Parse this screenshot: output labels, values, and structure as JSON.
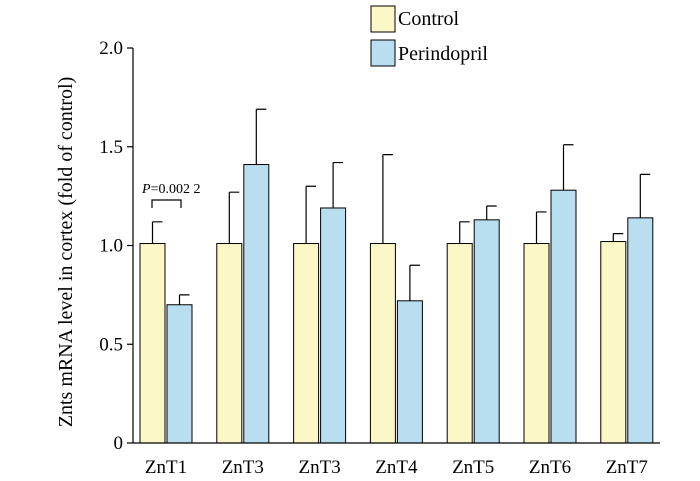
{
  "chart_data": {
    "type": "bar",
    "ylabel": "Znts mRNA level in cortex (fold of control)",
    "xlabel": "",
    "ylim": [
      0,
      2.0
    ],
    "yticks": [
      "0",
      "0.5",
      "1.0",
      "1.5",
      "2.0"
    ],
    "ytick_values": [
      0,
      0.5,
      1.0,
      1.5,
      2.0
    ],
    "categories": [
      "ZnT1",
      "ZnT3",
      "ZnT3",
      "ZnT4",
      "ZnT5",
      "ZnT6",
      "ZnT7"
    ],
    "series": [
      {
        "name": "Control",
        "color": "#fbf7c6",
        "values": [
          1.01,
          1.01,
          1.01,
          1.01,
          1.01,
          1.01,
          1.02
        ],
        "errors": [
          0.11,
          0.26,
          0.29,
          0.45,
          0.11,
          0.16,
          0.04
        ]
      },
      {
        "name": "Perindopril",
        "color": "#b9def0",
        "values": [
          0.7,
          1.41,
          1.19,
          0.72,
          1.13,
          1.28,
          1.14
        ],
        "errors": [
          0.05,
          0.28,
          0.23,
          0.18,
          0.07,
          0.23,
          0.22
        ]
      }
    ],
    "legend_position": "top-right",
    "annotation": {
      "p_symbol": "P",
      "p_text": "=0.002 2",
      "category_index": 0
    },
    "grid": false
  }
}
